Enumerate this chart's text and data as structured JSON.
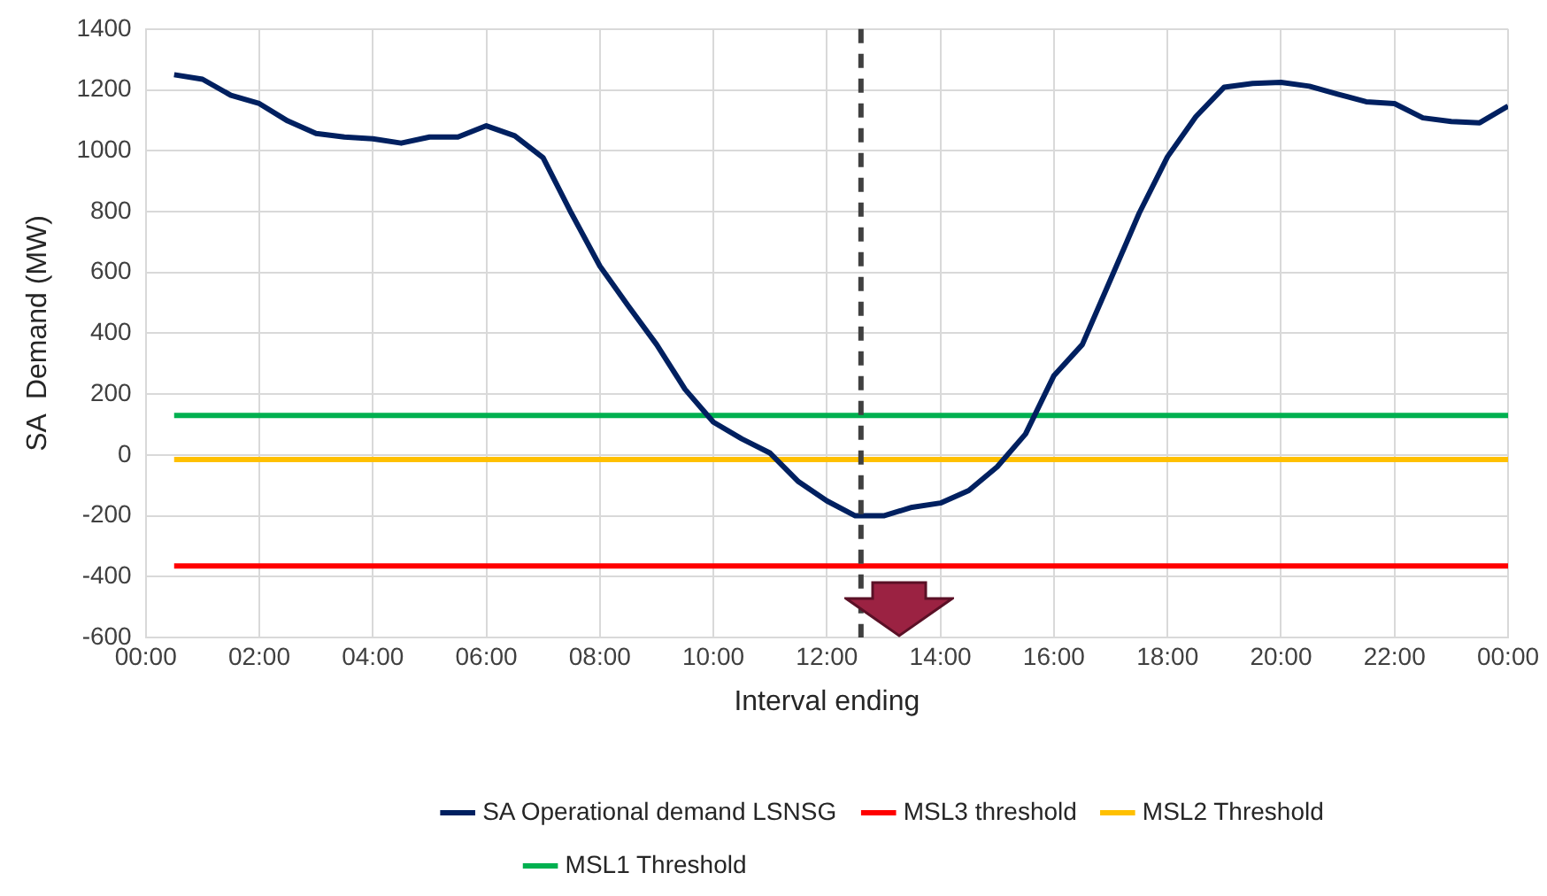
{
  "chart_data": {
    "type": "line",
    "xlabel": "Interval ending",
    "ylabel": "SA  Demand (MW)",
    "xlim": [
      0,
      24
    ],
    "xticks": [
      {
        "value": 0,
        "label": "00:00"
      },
      {
        "value": 2,
        "label": "02:00"
      },
      {
        "value": 4,
        "label": "04:00"
      },
      {
        "value": 6,
        "label": "06:00"
      },
      {
        "value": 8,
        "label": "08:00"
      },
      {
        "value": 10,
        "label": "10:00"
      },
      {
        "value": 12,
        "label": "12:00"
      },
      {
        "value": 14,
        "label": "14:00"
      },
      {
        "value": 16,
        "label": "16:00"
      },
      {
        "value": 18,
        "label": "18:00"
      },
      {
        "value": 20,
        "label": "20:00"
      },
      {
        "value": 22,
        "label": "22:00"
      },
      {
        "value": 24,
        "label": "00:00"
      }
    ],
    "ylim": [
      -600,
      1400
    ],
    "yticks": [
      -600,
      -400,
      -200,
      0,
      200,
      400,
      600,
      800,
      1000,
      1200,
      1400
    ],
    "grid": true,
    "legend": "bottom",
    "marker": "none",
    "x": [
      0.5,
      1,
      1.5,
      2,
      2.5,
      3,
      3.5,
      4,
      4.5,
      5,
      5.5,
      6,
      6.5,
      7,
      7.5,
      8,
      8.5,
      9,
      9.5,
      10,
      10.5,
      11,
      11.5,
      12,
      12.5,
      13,
      13.5,
      14,
      14.5,
      15,
      15.5,
      16,
      16.5,
      17,
      17.5,
      18,
      18.5,
      19,
      19.5,
      20,
      20.5,
      21,
      21.5,
      22,
      22.5,
      23,
      23.5,
      24
    ],
    "series": [
      {
        "name": "SA Operational demand LSNSG",
        "color": "#002060",
        "values": [
          1250,
          1235,
          1182,
          1155,
          1098,
          1057,
          1045,
          1039,
          1025,
          1045,
          1045,
          1082,
          1049,
          977,
          794,
          621,
          490,
          363,
          216,
          108,
          53,
          6,
          -88,
          -151,
          -200,
          -200,
          -172,
          -158,
          -117,
          -39,
          69,
          261,
          363,
          578,
          794,
          980,
          1112,
          1209,
          1221,
          1225,
          1212,
          1186,
          1161,
          1155,
          1108,
          1096,
          1092,
          1147
        ]
      },
      {
        "name": "MSL3 threshold",
        "color": "#ff0000",
        "values": [
          -365,
          -365,
          -365,
          -365,
          -365,
          -365,
          -365,
          -365,
          -365,
          -365,
          -365,
          -365,
          -365,
          -365,
          -365,
          -365,
          -365,
          -365,
          -365,
          -365,
          -365,
          -365,
          -365,
          -365,
          -365,
          -365,
          -365,
          -365,
          -365,
          -365,
          -365,
          -365,
          -365,
          -365,
          -365,
          -365,
          -365,
          -365,
          -365,
          -365,
          -365,
          -365,
          -365,
          -365,
          -365,
          -365,
          -365,
          -365
        ]
      },
      {
        "name": "MSL2 Threshold",
        "color": "#ffc000",
        "values": [
          -15,
          -15,
          -15,
          -15,
          -15,
          -15,
          -15,
          -15,
          -15,
          -15,
          -15,
          -15,
          -15,
          -15,
          -15,
          -15,
          -15,
          -15,
          -15,
          -15,
          -15,
          -15,
          -15,
          -15,
          -15,
          -15,
          -15,
          -15,
          -15,
          -15,
          -15,
          -15,
          -15,
          -15,
          -15,
          -15,
          -15,
          -15,
          -15,
          -15,
          -15,
          -15,
          -15,
          -15,
          -15,
          -15,
          -15,
          -15
        ]
      },
      {
        "name": "MSL1 Threshold",
        "color": "#00b050",
        "values": [
          130,
          130,
          130,
          130,
          130,
          130,
          130,
          130,
          130,
          130,
          130,
          130,
          130,
          130,
          130,
          130,
          130,
          130,
          130,
          130,
          130,
          130,
          130,
          130,
          130,
          130,
          130,
          130,
          130,
          130,
          130,
          130,
          130,
          130,
          130,
          130,
          130,
          130,
          130,
          130,
          130,
          130,
          130,
          130,
          130,
          130,
          130,
          130
        ]
      }
    ],
    "ref_lines": [
      {
        "axis": "x",
        "value": 12.6,
        "color": "#404040",
        "line_style": "dashed"
      }
    ]
  }
}
